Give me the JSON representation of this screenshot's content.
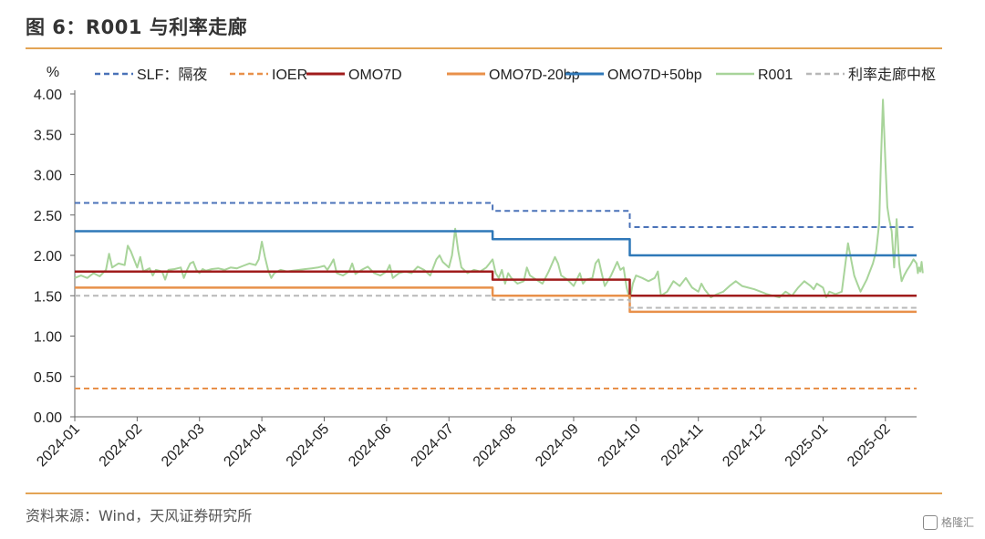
{
  "page": {
    "title": "图 6：R001 与利率走廊",
    "source": "资料来源：Wind，天风证券研究所",
    "watermark": "格隆汇"
  },
  "chart_data": {
    "type": "line",
    "title": "图 6：R001 与利率走廊",
    "ylabel": "%",
    "ylim": [
      0,
      4.0
    ],
    "yticks": [
      0.0,
      0.5,
      1.0,
      1.5,
      2.0,
      2.5,
      3.0,
      3.5,
      4.0
    ],
    "ytick_labels": [
      "0.00",
      "0.50",
      "1.00",
      "1.50",
      "2.00",
      "2.50",
      "3.00",
      "3.50",
      "4.00"
    ],
    "xlim": [
      0,
      13.5
    ],
    "x_ticks": [
      0,
      1,
      2,
      3,
      4,
      5,
      6,
      7,
      8,
      9,
      10,
      11,
      12,
      13
    ],
    "x_tick_labels": [
      "2024-01",
      "2024-02",
      "2024-03",
      "2024-04",
      "2024-05",
      "2024-06",
      "2024-07",
      "2024-08",
      "2024-09",
      "2024-10",
      "2024-11",
      "2024-12",
      "2025-01",
      "2025-02"
    ],
    "legend_position": "top",
    "series": [
      {
        "name": "SLF：隔夜",
        "color": "#4a72b8",
        "dash": "dashed",
        "width": 2,
        "points": [
          [
            0,
            2.65
          ],
          [
            6.7,
            2.65
          ],
          [
            6.7,
            2.55
          ],
          [
            8.9,
            2.55
          ],
          [
            8.9,
            2.35
          ],
          [
            13.5,
            2.35
          ]
        ]
      },
      {
        "name": "IOER",
        "color": "#e8904a",
        "dash": "dashed",
        "width": 2,
        "points": [
          [
            0,
            0.35
          ],
          [
            13.5,
            0.35
          ]
        ]
      },
      {
        "name": "OMO7D",
        "color": "#a01c1c",
        "dash": "solid",
        "width": 2.5,
        "points": [
          [
            0,
            1.8
          ],
          [
            6.7,
            1.8
          ],
          [
            6.7,
            1.7
          ],
          [
            8.9,
            1.7
          ],
          [
            8.9,
            1.5
          ],
          [
            13.5,
            1.5
          ]
        ]
      },
      {
        "name": "OMO7D-20bp",
        "color": "#e8904a",
        "dash": "solid",
        "width": 2.5,
        "points": [
          [
            0,
            1.6
          ],
          [
            6.7,
            1.6
          ],
          [
            6.7,
            1.5
          ],
          [
            8.9,
            1.5
          ],
          [
            8.9,
            1.3
          ],
          [
            13.5,
            1.3
          ]
        ]
      },
      {
        "name": "OMO7D+50bp",
        "color": "#2f78b8",
        "dash": "solid",
        "width": 2.5,
        "points": [
          [
            0,
            2.3
          ],
          [
            6.7,
            2.3
          ],
          [
            6.7,
            2.2
          ],
          [
            8.9,
            2.2
          ],
          [
            8.9,
            2.0
          ],
          [
            13.5,
            2.0
          ]
        ]
      },
      {
        "name": "R001",
        "color": "#a8d49a",
        "dash": "solid",
        "width": 2,
        "points": [
          [
            0,
            1.72
          ],
          [
            0.1,
            1.75
          ],
          [
            0.2,
            1.72
          ],
          [
            0.3,
            1.78
          ],
          [
            0.4,
            1.74
          ],
          [
            0.5,
            1.82
          ],
          [
            0.55,
            2.02
          ],
          [
            0.6,
            1.85
          ],
          [
            0.7,
            1.9
          ],
          [
            0.8,
            1.88
          ],
          [
            0.85,
            2.12
          ],
          [
            0.9,
            2.05
          ],
          [
            1.0,
            1.85
          ],
          [
            1.05,
            1.98
          ],
          [
            1.1,
            1.8
          ],
          [
            1.2,
            1.84
          ],
          [
            1.25,
            1.75
          ],
          [
            1.3,
            1.82
          ],
          [
            1.4,
            1.8
          ],
          [
            1.45,
            1.7
          ],
          [
            1.5,
            1.82
          ],
          [
            1.6,
            1.83
          ],
          [
            1.7,
            1.85
          ],
          [
            1.75,
            1.72
          ],
          [
            1.8,
            1.82
          ],
          [
            1.85,
            1.9
          ],
          [
            1.9,
            1.92
          ],
          [
            1.95,
            1.82
          ],
          [
            2.0,
            1.78
          ],
          [
            2.05,
            1.83
          ],
          [
            2.1,
            1.81
          ],
          [
            2.2,
            1.83
          ],
          [
            2.3,
            1.84
          ],
          [
            2.4,
            1.82
          ],
          [
            2.5,
            1.85
          ],
          [
            2.6,
            1.84
          ],
          [
            2.7,
            1.87
          ],
          [
            2.8,
            1.9
          ],
          [
            2.9,
            1.88
          ],
          [
            2.95,
            1.95
          ],
          [
            3.0,
            2.17
          ],
          [
            3.05,
            1.98
          ],
          [
            3.1,
            1.82
          ],
          [
            3.15,
            1.72
          ],
          [
            3.2,
            1.78
          ],
          [
            3.3,
            1.82
          ],
          [
            3.4,
            1.8
          ],
          [
            3.5,
            1.81
          ],
          [
            3.6,
            1.82
          ],
          [
            3.7,
            1.83
          ],
          [
            3.8,
            1.84
          ],
          [
            3.9,
            1.85
          ],
          [
            4.0,
            1.87
          ],
          [
            4.05,
            1.82
          ],
          [
            4.1,
            1.88
          ],
          [
            4.15,
            1.95
          ],
          [
            4.2,
            1.78
          ],
          [
            4.3,
            1.75
          ],
          [
            4.4,
            1.8
          ],
          [
            4.45,
            1.9
          ],
          [
            4.5,
            1.77
          ],
          [
            4.6,
            1.82
          ],
          [
            4.7,
            1.86
          ],
          [
            4.8,
            1.78
          ],
          [
            4.9,
            1.75
          ],
          [
            5.0,
            1.8
          ],
          [
            5.05,
            1.88
          ],
          [
            5.1,
            1.72
          ],
          [
            5.2,
            1.78
          ],
          [
            5.3,
            1.8
          ],
          [
            5.4,
            1.78
          ],
          [
            5.5,
            1.86
          ],
          [
            5.6,
            1.82
          ],
          [
            5.7,
            1.75
          ],
          [
            5.8,
            1.95
          ],
          [
            5.85,
            2.0
          ],
          [
            5.9,
            1.92
          ],
          [
            6.0,
            1.85
          ],
          [
            6.05,
            2.0
          ],
          [
            6.1,
            2.33
          ],
          [
            6.15,
            2.05
          ],
          [
            6.2,
            1.85
          ],
          [
            6.3,
            1.78
          ],
          [
            6.4,
            1.82
          ],
          [
            6.5,
            1.8
          ],
          [
            6.6,
            1.85
          ],
          [
            6.65,
            1.9
          ],
          [
            6.7,
            1.95
          ],
          [
            6.75,
            1.78
          ],
          [
            6.8,
            1.72
          ],
          [
            6.85,
            1.82
          ],
          [
            6.9,
            1.65
          ],
          [
            6.95,
            1.78
          ],
          [
            7.0,
            1.72
          ],
          [
            7.1,
            1.65
          ],
          [
            7.2,
            1.68
          ],
          [
            7.25,
            1.85
          ],
          [
            7.3,
            1.75
          ],
          [
            7.4,
            1.7
          ],
          [
            7.5,
            1.65
          ],
          [
            7.6,
            1.8
          ],
          [
            7.7,
            1.98
          ],
          [
            7.75,
            1.9
          ],
          [
            7.8,
            1.75
          ],
          [
            7.9,
            1.7
          ],
          [
            8.0,
            1.62
          ],
          [
            8.1,
            1.78
          ],
          [
            8.15,
            1.65
          ],
          [
            8.2,
            1.7
          ],
          [
            8.3,
            1.72
          ],
          [
            8.35,
            1.9
          ],
          [
            8.4,
            1.95
          ],
          [
            8.45,
            1.78
          ],
          [
            8.5,
            1.62
          ],
          [
            8.6,
            1.75
          ],
          [
            8.7,
            1.92
          ],
          [
            8.75,
            1.82
          ],
          [
            8.8,
            1.85
          ],
          [
            8.85,
            1.6
          ],
          [
            8.9,
            1.45
          ],
          [
            8.95,
            1.65
          ],
          [
            9.0,
            1.75
          ],
          [
            9.1,
            1.72
          ],
          [
            9.2,
            1.68
          ],
          [
            9.3,
            1.72
          ],
          [
            9.35,
            1.8
          ],
          [
            9.4,
            1.5
          ],
          [
            9.5,
            1.55
          ],
          [
            9.6,
            1.68
          ],
          [
            9.7,
            1.62
          ],
          [
            9.8,
            1.72
          ],
          [
            9.9,
            1.6
          ],
          [
            10.0,
            1.55
          ],
          [
            10.05,
            1.65
          ],
          [
            10.1,
            1.58
          ],
          [
            10.2,
            1.48
          ],
          [
            10.3,
            1.52
          ],
          [
            10.4,
            1.55
          ],
          [
            10.5,
            1.62
          ],
          [
            10.6,
            1.68
          ],
          [
            10.7,
            1.62
          ],
          [
            10.8,
            1.6
          ],
          [
            10.9,
            1.58
          ],
          [
            11.0,
            1.55
          ],
          [
            11.1,
            1.52
          ],
          [
            11.2,
            1.5
          ],
          [
            11.3,
            1.48
          ],
          [
            11.4,
            1.55
          ],
          [
            11.5,
            1.5
          ],
          [
            11.6,
            1.6
          ],
          [
            11.7,
            1.68
          ],
          [
            11.8,
            1.62
          ],
          [
            11.85,
            1.58
          ],
          [
            11.9,
            1.65
          ],
          [
            12.0,
            1.6
          ],
          [
            12.05,
            1.48
          ],
          [
            12.1,
            1.55
          ],
          [
            12.2,
            1.52
          ],
          [
            12.3,
            1.55
          ],
          [
            12.4,
            2.15
          ],
          [
            12.45,
            1.95
          ],
          [
            12.5,
            1.75
          ],
          [
            12.55,
            1.65
          ],
          [
            12.6,
            1.55
          ],
          [
            12.7,
            1.7
          ],
          [
            12.8,
            1.9
          ],
          [
            12.85,
            2.05
          ],
          [
            12.9,
            2.4
          ],
          [
            12.93,
            3.2
          ],
          [
            12.96,
            3.93
          ],
          [
            13.0,
            3.15
          ],
          [
            13.03,
            2.6
          ],
          [
            13.06,
            2.45
          ],
          [
            13.1,
            2.3
          ],
          [
            13.14,
            1.85
          ],
          [
            13.18,
            2.45
          ],
          [
            13.22,
            1.9
          ],
          [
            13.26,
            1.68
          ],
          [
            13.3,
            1.75
          ],
          [
            13.35,
            1.82
          ],
          [
            13.4,
            1.88
          ],
          [
            13.45,
            1.95
          ],
          [
            13.5,
            1.9
          ],
          [
            13.52,
            1.78
          ],
          [
            13.54,
            1.85
          ],
          [
            13.56,
            1.8
          ],
          [
            13.58,
            1.92
          ],
          [
            13.6,
            1.78
          ]
        ]
      },
      {
        "name": "利率走廊中枢",
        "color": "#b8b8b8",
        "dash": "dashed",
        "width": 2,
        "points": [
          [
            0,
            1.5
          ],
          [
            6.7,
            1.5
          ],
          [
            6.7,
            1.45
          ],
          [
            8.9,
            1.45
          ],
          [
            8.9,
            1.35
          ],
          [
            13.5,
            1.35
          ]
        ]
      }
    ]
  }
}
